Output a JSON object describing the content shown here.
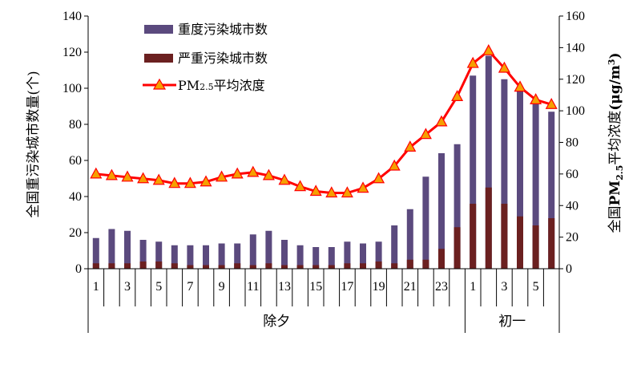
{
  "chart_data": {
    "type": "bar",
    "categories": [
      "1",
      "2",
      "3",
      "4",
      "5",
      "6",
      "7",
      "8",
      "9",
      "10",
      "11",
      "12",
      "13",
      "14",
      "15",
      "16",
      "17",
      "18",
      "19",
      "20",
      "21",
      "22",
      "23",
      "24",
      "1",
      "2",
      "3",
      "4",
      "5",
      "6"
    ],
    "x_tick_labels": [
      "1",
      "",
      "3",
      "",
      "5",
      "",
      "7",
      "",
      "9",
      "",
      "11",
      "",
      "13",
      "",
      "15",
      "",
      "17",
      "",
      "19",
      "",
      "21",
      "",
      "23",
      "",
      "1",
      "",
      "3",
      "",
      "5",
      ""
    ],
    "groups": [
      {
        "label": "除夕",
        "start": 0,
        "end": 24
      },
      {
        "label": "初一",
        "start": 24,
        "end": 30
      }
    ],
    "series": [
      {
        "name": "重度污染城市数",
        "axis": "left",
        "kind": "bar",
        "color": "#5B4A7E",
        "values": [
          17,
          22,
          21,
          16,
          15,
          13,
          13,
          13,
          14,
          14,
          19,
          21,
          16,
          13,
          12,
          12,
          15,
          14,
          15,
          24,
          33,
          51,
          64,
          69,
          107,
          118,
          105,
          99,
          92,
          87
        ]
      },
      {
        "name": "严重污染城市数",
        "axis": "left",
        "kind": "bar",
        "color": "#6B2020",
        "values": [
          3,
          3,
          3,
          4,
          4,
          3,
          2,
          2,
          2,
          3,
          2,
          3,
          2,
          2,
          2,
          2,
          3,
          3,
          4,
          3,
          5,
          5,
          11,
          23,
          36,
          45,
          36,
          29,
          24,
          28
        ]
      },
      {
        "name_main": "PM",
        "name_sub": "2.5",
        "name_rest": "平均浓度",
        "axis": "right",
        "kind": "line",
        "color": "#FF0000",
        "marker_color": "#F5A000",
        "values": [
          60,
          59,
          58,
          57,
          56,
          54,
          54,
          55,
          58,
          60,
          61,
          59,
          56,
          52,
          49,
          48,
          48,
          51,
          57,
          65,
          77,
          85,
          93,
          109,
          130,
          138,
          127,
          115,
          107,
          104
        ]
      }
    ],
    "y_left": {
      "label": "全国重污染城市数量(个)",
      "min": 0,
      "max": 140,
      "ticks": [
        "0",
        "20",
        "40",
        "60",
        "80",
        "100",
        "120",
        "140"
      ]
    },
    "y_right": {
      "label_pre": "全国",
      "label_main": "PM",
      "label_sub": "2.5",
      "label_rest": "平均浓度",
      "label_unit": "(μg/m",
      "label_sup": "3",
      "label_close": ")",
      "min": 0,
      "max": 160,
      "ticks": [
        "0",
        "20",
        "40",
        "60",
        "80",
        "100",
        "120",
        "140",
        "160"
      ]
    },
    "legend_placement": "top-left",
    "grid": false
  }
}
